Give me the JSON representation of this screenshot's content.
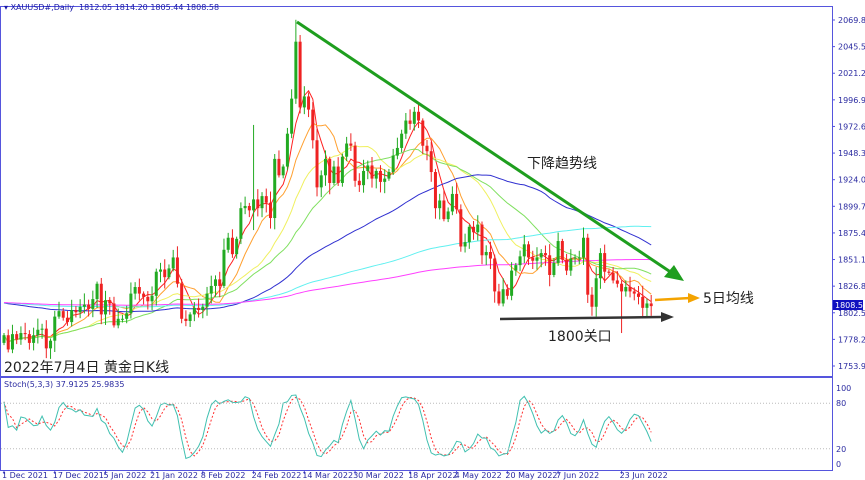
{
  "header": {
    "symbol": "XAUUSD#,Daily",
    "open": "1812.05",
    "high": "1814.20",
    "low": "1805.44",
    "close": "1808.58"
  },
  "colors": {
    "bull": "#22aa22",
    "bear": "#ee2222",
    "axis": "#3333cc",
    "trend": "#1e9e1e",
    "ma5_arrow": "#f4a300",
    "level_arrow": "#333333",
    "price_tag": "#1010c0"
  },
  "annotations": {
    "title": "2022年7月4日 黄金日K线",
    "trendline": "下降趋势线",
    "ma5": "5日均线",
    "level": "1800关口"
  },
  "price_tag": "1808.58",
  "chart_data": [
    {
      "type": "candlestick",
      "title": "XAUUSD#,Daily",
      "y_ticks": [
        "2069.80",
        "2045.50",
        "2021.20",
        "1996.90",
        "1972.60",
        "1948.30",
        "1924.00",
        "1899.70",
        "1875.40",
        "1851.10",
        "1826.80",
        "1802.50",
        "1778.20",
        "1753.90"
      ],
      "ylim": [
        1753.9,
        2069.8
      ],
      "x_ticks": [
        "1 Dec 2021",
        "17 Dec 2021",
        "5 Jan 2022",
        "21 Jan 2022",
        "8 Feb 2022",
        "24 Feb 2022",
        "14 Mar 2022",
        "30 Mar 2022",
        "18 Apr 2022",
        "4 May 2022",
        "20 May 2022",
        "7 Jun 2022",
        "23 Jun 2022"
      ],
      "moving_averages": [
        5,
        10,
        20,
        30,
        60,
        120,
        200
      ],
      "ma_colors": [
        "#ff2020",
        "#ffa030",
        "#f0f060",
        "#80e060",
        "#3030d0",
        "#60f0f0",
        "#ff40ff"
      ],
      "closes": [
        1782,
        1769,
        1783,
        1778,
        1784,
        1783,
        1775,
        1782,
        1787,
        1788,
        1770,
        1777,
        1799,
        1804,
        1798,
        1794,
        1805,
        1803,
        1808,
        1810,
        1806,
        1815,
        1829,
        1801,
        1814,
        1811,
        1791,
        1797,
        1797,
        1802,
        1820,
        1826,
        1820,
        1817,
        1813,
        1818,
        1840,
        1842,
        1835,
        1843,
        1853,
        1829,
        1797,
        1795,
        1801,
        1807,
        1805,
        1808,
        1820,
        1827,
        1833,
        1827,
        1860,
        1871,
        1856,
        1870,
        1898,
        1900,
        1896,
        1906,
        1898,
        1909,
        1903,
        1889,
        1943,
        1928,
        1936,
        1966,
        1998,
        2050,
        1990,
        2000,
        1988,
        1960,
        1917,
        1928,
        1943,
        1921,
        1936,
        1921,
        1945,
        1957,
        1955,
        1923,
        1919,
        1932,
        1937,
        1925,
        1932,
        1922,
        1925,
        1931,
        1946,
        1953,
        1966,
        1978,
        1975,
        1986,
        1978,
        1955,
        1950,
        1931,
        1898,
        1905,
        1888,
        1895,
        1911,
        1897,
        1863,
        1867,
        1881,
        1876,
        1883,
        1855,
        1858,
        1852,
        1822,
        1811,
        1824,
        1818,
        1841,
        1846,
        1854,
        1865,
        1853,
        1850,
        1853,
        1857,
        1855,
        1837,
        1848,
        1868,
        1851,
        1841,
        1852,
        1853,
        1853,
        1871,
        1819,
        1808,
        1834,
        1857,
        1840,
        1839,
        1832,
        1829,
        1822,
        1826,
        1822,
        1820,
        1817,
        1807,
        1811,
        1808.58
      ]
    },
    {
      "type": "line",
      "title": "Stoch(5,3,3) 37.9125 25.9835",
      "y_ticks": [
        "100",
        "80",
        "20",
        "0"
      ],
      "ylim": [
        0,
        100
      ],
      "series_colors": [
        "#40c0b0",
        "#ff3030"
      ]
    }
  ]
}
